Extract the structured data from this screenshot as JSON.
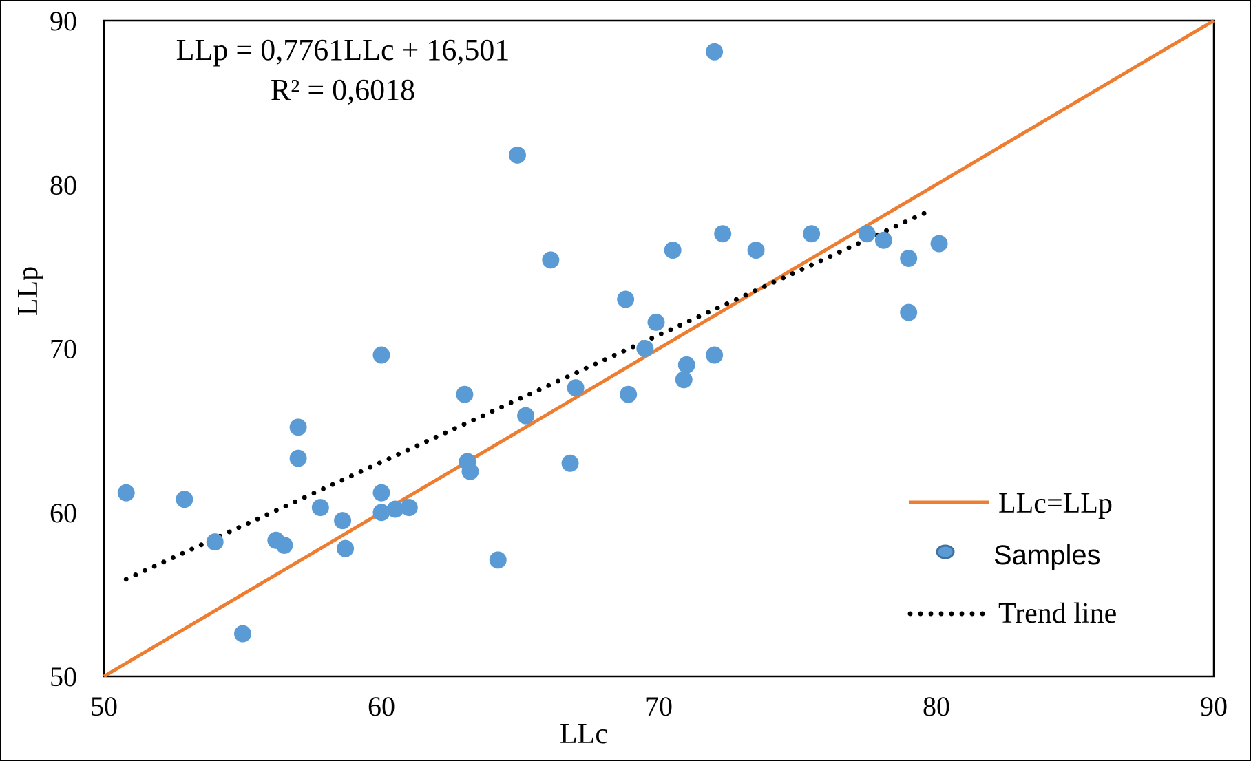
{
  "chart_data": {
    "type": "scatter",
    "xlabel": "LLc",
    "ylabel": "LLp",
    "xlim": [
      50,
      90
    ],
    "ylim": [
      50,
      90
    ],
    "xticks": [
      50,
      60,
      70,
      80,
      90
    ],
    "yticks": [
      50,
      60,
      70,
      80,
      90
    ],
    "grid": false,
    "legend_placement": "bottom-right",
    "equation": "LLp = 0,7761LLc + 16,501",
    "r_squared": "R² = 0,6018",
    "colors": {
      "samples": "#5b9bd5",
      "identity": "#ed7d31",
      "trend": "#000000"
    },
    "series": [
      {
        "name": "LLc=LLp",
        "kind": "line",
        "x": [
          50,
          90
        ],
        "y": [
          50,
          90
        ]
      },
      {
        "name": "Samples",
        "kind": "scatter",
        "x": [
          50.8,
          52.9,
          54.0,
          55.0,
          56.2,
          56.5,
          57.0,
          57.0,
          57.8,
          58.6,
          58.7,
          60.0,
          60.0,
          60.0,
          60.5,
          61.0,
          63.0,
          63.1,
          63.2,
          64.2,
          64.9,
          65.2,
          66.1,
          66.8,
          67.0,
          68.8,
          68.9,
          69.5,
          69.9,
          70.5,
          70.9,
          71.0,
          72.0,
          72.0,
          72.3,
          73.5,
          75.5,
          77.5,
          78.1,
          79.0,
          79.0,
          80.1
        ],
        "y": [
          61.2,
          60.8,
          58.2,
          52.6,
          58.3,
          58.0,
          65.2,
          63.3,
          60.3,
          59.5,
          57.8,
          69.6,
          61.2,
          60.0,
          60.2,
          60.3,
          67.2,
          63.1,
          62.5,
          57.1,
          81.8,
          65.9,
          75.4,
          63.0,
          67.6,
          73.0,
          67.2,
          70.0,
          71.6,
          76.0,
          68.1,
          69.0,
          88.1,
          69.6,
          77.0,
          76.0,
          77.0,
          77.0,
          76.6,
          75.5,
          72.2,
          76.4
        ]
      },
      {
        "name": "Trend line",
        "kind": "dotted-line",
        "slope": 0.7761,
        "intercept": 16.501,
        "x": [
          50.8,
          79.8
        ]
      }
    ]
  }
}
